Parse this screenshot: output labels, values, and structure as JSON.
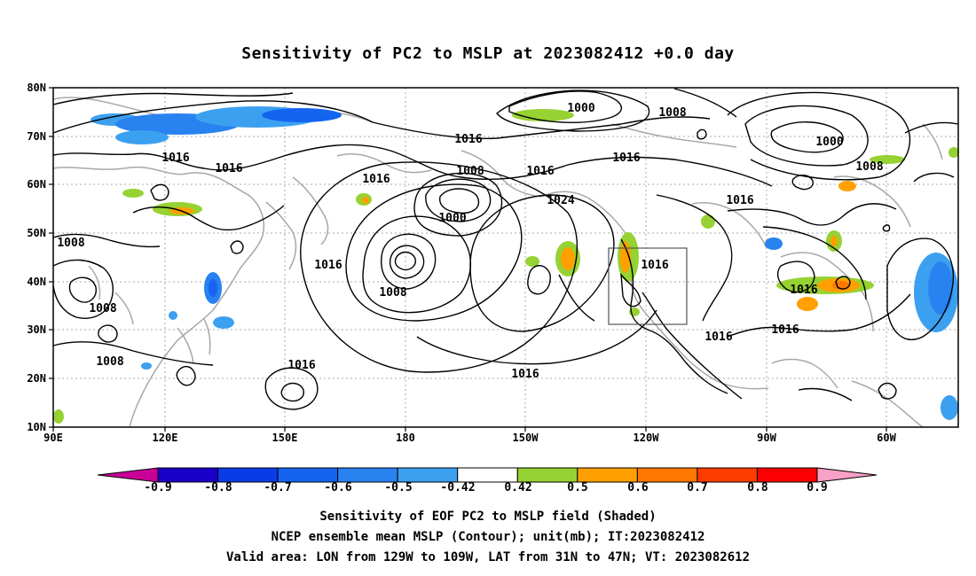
{
  "title": "Sensitivity of PC2 to MSLP at 2023082412 +0.0 day",
  "lat_ticks": [
    "80N",
    "70N",
    "60N",
    "50N",
    "40N",
    "30N",
    "20N",
    "10N"
  ],
  "lon_ticks": [
    "90E",
    "120E",
    "150E",
    "180",
    "150W",
    "120W",
    "90W",
    "60W"
  ],
  "contour_labels": [
    {
      "text": "1000"
    },
    {
      "text": "1008"
    },
    {
      "text": "1016"
    },
    {
      "text": "1000"
    },
    {
      "text": "1008"
    },
    {
      "text": "1016"
    },
    {
      "text": "1016"
    },
    {
      "text": "1016"
    },
    {
      "text": "1016"
    },
    {
      "text": "1008"
    },
    {
      "text": "1016"
    },
    {
      "text": "1024"
    },
    {
      "text": "1000"
    },
    {
      "text": "1016"
    },
    {
      "text": "1008"
    },
    {
      "text": "1016"
    },
    {
      "text": "1008"
    },
    {
      "text": "1008"
    },
    {
      "text": "1016"
    },
    {
      "text": "1016"
    },
    {
      "text": "1016"
    },
    {
      "text": "1016"
    },
    {
      "text": "1008"
    },
    {
      "text": "1016"
    }
  ],
  "colorbar": {
    "labels": [
      "-0.9",
      "-0.8",
      "-0.7",
      "-0.6",
      "-0.5",
      "-0.42",
      "0.42",
      "0.5",
      "0.6",
      "0.7",
      "0.8",
      "0.9"
    ],
    "colors": [
      "#1a00c8",
      "#0a3ce6",
      "#1464f0",
      "#2882f0",
      "#3ca0f0",
      "#ffffff",
      "#96d232",
      "#ffa000",
      "#ff7800",
      "#ff3c00",
      "#fa0000"
    ],
    "low_end_color": "#c80096",
    "high_end_color": "#f8a0c8"
  },
  "captions": [
    "Sensitivity of EOF PC2 to MSLP field (Shaded)",
    "NCEP ensemble mean MSLP (Contour); unit(mb); IT:2023082412",
    "Valid area: LON from 129W to 109W, LAT from 31N to 47N; VT: 2023082612"
  ]
}
